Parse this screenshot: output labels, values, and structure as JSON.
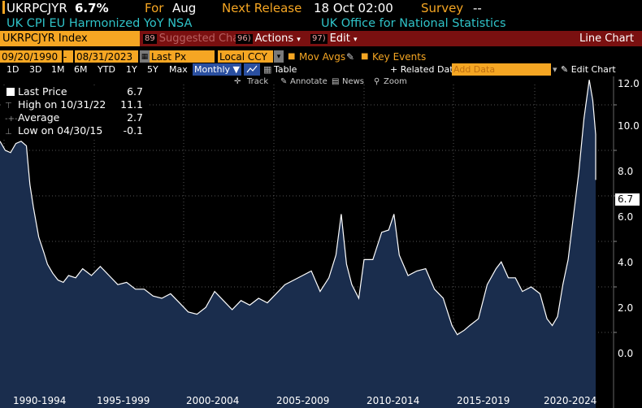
{
  "header": {
    "ticker": "UKRPCJYR",
    "price": "6.7%",
    "for_label": "For",
    "for_value": "Aug",
    "next_release_label": "Next Release",
    "next_release_value": "18 Oct 02:00",
    "survey_label": "Survey",
    "survey_value": "--",
    "name": "UK CPI EU Harmonized YoY NSA",
    "source": "UK Office for National Statistics"
  },
  "toolbar": {
    "index_label": "UKRPCJYR Index",
    "suggested_num": "89",
    "suggested_label": "Suggested Charts",
    "actions_num": "96)",
    "actions_label": "Actions",
    "edit_num": "97)",
    "edit_label": "Edit",
    "chart_type_label": "Line Chart",
    "start_date": "09/20/1990",
    "end_date": "08/31/2023",
    "field": "Last Px",
    "currency": "Local CCY",
    "mov_avgs": "Mov Avgs",
    "key_events": "Key Events",
    "periods": [
      "1D",
      "3D",
      "1M",
      "6M",
      "YTD",
      "1Y",
      "5Y",
      "Max"
    ],
    "frequency": "Monthly",
    "table_label": "Table",
    "related_data": "+ Related Dat",
    "add_data_placeholder": "Add Data",
    "edit_chart": "Edit Chart",
    "tools": [
      "Track",
      "Annotate",
      "News",
      "Zoom"
    ]
  },
  "legend": {
    "items": [
      {
        "label": "Last Price",
        "value": "6.7"
      },
      {
        "label": "High on 10/31/22",
        "value": "11.1"
      },
      {
        "label": "Average",
        "value": "2.7"
      },
      {
        "label": "Low on 04/30/15",
        "value": "-0.1"
      }
    ]
  },
  "colors": {
    "accent": "#f5a623",
    "teal": "#2fc3c8",
    "toolbar_red": "#7a1010",
    "area_fill": "#1a2d4d",
    "line": "#ffffff"
  },
  "chart_data": {
    "type": "area",
    "ylim": [
      -1.2,
      12.5
    ],
    "yticks": [
      "12.0",
      "10.0",
      "8.0",
      "6.0",
      "4.0",
      "2.0",
      "0.0"
    ],
    "ytick_values": [
      12,
      10,
      8,
      6,
      4,
      2,
      0
    ],
    "xlim": [
      1989.3,
      2025.8
    ],
    "xtick_labels": [
      "1990-1994",
      "1995-1999",
      "2000-2004",
      "2005-2009",
      "2010-2014",
      "2015-2019",
      "2020-2024"
    ],
    "last_value_label": "6.7",
    "series": [
      {
        "values_x": [
          1989.3,
          1989.6,
          1989.9,
          1990.2,
          1990.5,
          1990.8,
          1991.0,
          1991.2,
          1991.5,
          1991.8,
          1992.0,
          1992.3,
          1992.6,
          1992.9,
          1993.2,
          1993.6,
          1994.0,
          1994.5,
          1995.0,
          1995.5,
          1996.0,
          1996.5,
          1997.0,
          1997.5,
          1998.0,
          1998.5,
          1999.0,
          1999.5,
          2000.0,
          2000.5,
          2001.0,
          2001.5,
          2002.0,
          2002.5,
          2003.0,
          2003.5,
          2004.0,
          2004.5,
          2005.0,
          2005.5,
          2006.0,
          2006.5,
          2007.0,
          2007.5,
          2008.0,
          2008.4,
          2008.7,
          2009.0,
          2009.3,
          2009.7,
          2010.0,
          2010.5,
          2011.0,
          2011.4,
          2011.7,
          2012.0,
          2012.5,
          2013.0,
          2013.5,
          2014.0,
          2014.5,
          2015.0,
          2015.3,
          2015.7,
          2016.0,
          2016.5,
          2017.0,
          2017.5,
          2017.8,
          2018.2,
          2018.6,
          2019.0,
          2019.5,
          2020.0,
          2020.4,
          2020.7,
          2021.0,
          2021.3,
          2021.6,
          2021.9,
          2022.2,
          2022.5,
          2022.8,
          2023.0,
          2023.3,
          2023.6
        ],
        "values_y": [
          8.4,
          8.0,
          7.9,
          8.3,
          8.4,
          8.2,
          6.5,
          5.5,
          4.2,
          3.5,
          3.0,
          2.6,
          2.3,
          2.2,
          2.5,
          2.4,
          2.8,
          2.5,
          2.9,
          2.5,
          2.1,
          2.2,
          1.9,
          1.9,
          1.6,
          1.5,
          1.7,
          1.3,
          0.9,
          0.8,
          1.1,
          1.8,
          1.4,
          1.0,
          1.4,
          1.2,
          1.5,
          1.3,
          1.7,
          2.1,
          2.3,
          2.5,
          2.7,
          1.8,
          2.4,
          3.4,
          5.2,
          3.0,
          2.1,
          1.5,
          3.2,
          3.2,
          4.4,
          4.5,
          5.2,
          3.4,
          2.5,
          2.7,
          2.8,
          1.9,
          1.5,
          0.3,
          -0.1,
          0.1,
          0.3,
          0.6,
          2.1,
          2.8,
          3.1,
          2.4,
          2.4,
          1.8,
          2.0,
          1.7,
          0.6,
          0.3,
          0.7,
          2.1,
          3.2,
          5.1,
          7.0,
          9.4,
          11.1,
          10.2,
          8.7,
          6.7
        ]
      }
    ]
  }
}
